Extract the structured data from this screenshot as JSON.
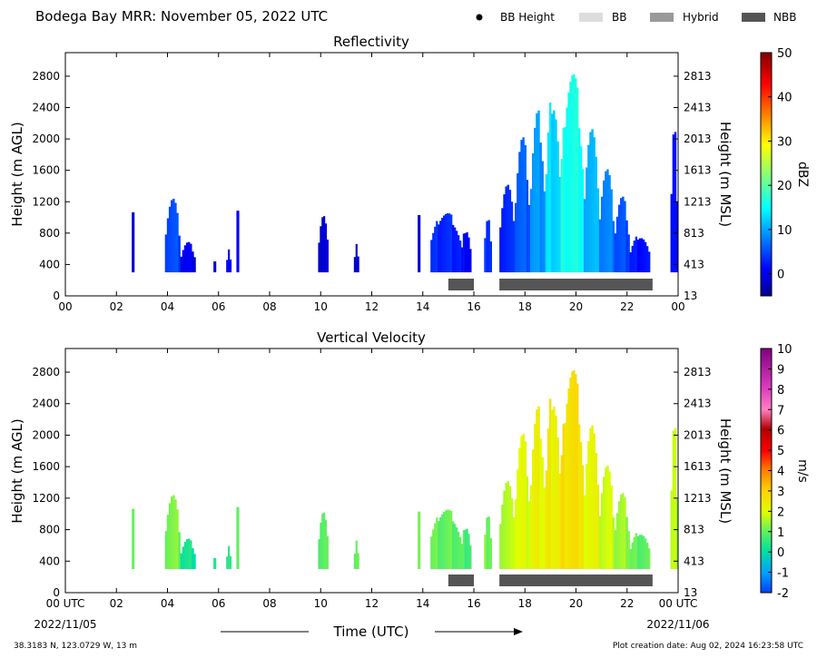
{
  "header": {
    "title": "Bodega Bay MRR:  November 05, 2022 UTC",
    "legend": [
      {
        "label": "BB Height",
        "kind": "dot",
        "color": "#000000"
      },
      {
        "label": "BB",
        "kind": "box",
        "color": "#dddddd"
      },
      {
        "label": "Hybrid",
        "kind": "box",
        "color": "#999999"
      },
      {
        "label": "NBB",
        "kind": "box",
        "color": "#555555"
      }
    ]
  },
  "footer": {
    "location": "38.3183 N, 123.0729 W, 13 m",
    "creation": "Plot creation date: Aug 02, 2024 16:23:58 UTC",
    "xlabel": "Time (UTC)",
    "start_date": "2022/11/05",
    "end_date": "2022/11/06"
  },
  "chart_data": [
    {
      "type": "heatmap",
      "title": "Reflectivity",
      "xlabel": "",
      "ylabel": "Height (m AGL)",
      "ylabel_right": "Height (m MSL)",
      "colorbar_label": "dBZ",
      "x_ticks": [
        "00",
        "02",
        "04",
        "06",
        "08",
        "10",
        "12",
        "14",
        "16",
        "18",
        "20",
        "22",
        "00"
      ],
      "y_ticks": [
        0,
        400,
        800,
        1200,
        1600,
        2000,
        2400,
        2800
      ],
      "y_ticks_right": [
        13,
        413,
        813,
        1213,
        1613,
        2013,
        2413,
        2813
      ],
      "colorbar_ticks": [
        0,
        10,
        20,
        30,
        40,
        50
      ],
      "xlim": [
        0,
        24
      ],
      "ylim": [
        0,
        3100
      ],
      "clim": [
        -5,
        50
      ],
      "echo_segments": [
        {
          "start": 2.6,
          "end": 2.7,
          "top": 1200,
          "value": 0
        },
        {
          "start": 3.9,
          "end": 4.5,
          "top": 1300,
          "value": 5
        },
        {
          "start": 4.5,
          "end": 5.1,
          "top": 700,
          "value": 0
        },
        {
          "start": 5.8,
          "end": 5.9,
          "top": 450,
          "value": -1
        },
        {
          "start": 6.3,
          "end": 6.5,
          "top": 600,
          "value": 0
        },
        {
          "start": 6.7,
          "end": 6.8,
          "top": 1100,
          "value": 0
        },
        {
          "start": 9.9,
          "end": 10.3,
          "top": 1100,
          "value": -1
        },
        {
          "start": 11.3,
          "end": 11.5,
          "top": 700,
          "value": -1
        },
        {
          "start": 13.8,
          "end": 13.9,
          "top": 1100,
          "value": -1
        },
        {
          "start": 14.3,
          "end": 15.5,
          "top": 1100,
          "value": 3
        },
        {
          "start": 15.5,
          "end": 15.9,
          "top": 900,
          "value": 1
        },
        {
          "start": 16.4,
          "end": 16.7,
          "top": 1100,
          "value": 4
        },
        {
          "start": 17.0,
          "end": 17.6,
          "top": 1500,
          "value": 3
        },
        {
          "start": 17.6,
          "end": 18.2,
          "top": 2100,
          "value": 6
        },
        {
          "start": 18.2,
          "end": 18.8,
          "top": 2400,
          "value": 9
        },
        {
          "start": 18.8,
          "end": 19.4,
          "top": 2700,
          "value": 13
        },
        {
          "start": 19.4,
          "end": 20.3,
          "top": 3000,
          "value": 16
        },
        {
          "start": 20.3,
          "end": 20.9,
          "top": 2300,
          "value": 11
        },
        {
          "start": 20.9,
          "end": 21.5,
          "top": 1700,
          "value": 8
        },
        {
          "start": 21.5,
          "end": 22.1,
          "top": 1300,
          "value": 5
        },
        {
          "start": 22.1,
          "end": 22.9,
          "top": 800,
          "value": 2
        },
        {
          "start": 23.7,
          "end": 24.0,
          "top": 2200,
          "value": 1
        }
      ],
      "bars": [
        {
          "label": "NBB",
          "start": 15.0,
          "end": 16.0
        },
        {
          "label": "NBB",
          "start": 17.0,
          "end": 23.0
        }
      ]
    },
    {
      "type": "heatmap",
      "title": "Vertical Velocity",
      "xlabel": "Time (UTC)",
      "ylabel": "Height (m AGL)",
      "ylabel_right": "Height (m MSL)",
      "colorbar_label": "m/s",
      "x_ticks": [
        "00 UTC",
        "02",
        "04",
        "06",
        "08",
        "10",
        "12",
        "14",
        "16",
        "18",
        "20",
        "22",
        "00 UTC"
      ],
      "y_ticks": [
        0,
        400,
        800,
        1200,
        1600,
        2000,
        2400,
        2800
      ],
      "y_ticks_right": [
        13,
        413,
        813,
        1213,
        1613,
        2013,
        2413,
        2813
      ],
      "colorbar_ticks": [
        -2,
        -1,
        0,
        1,
        2,
        3,
        4,
        5,
        6,
        7,
        8,
        9,
        10
      ],
      "xlim": [
        0,
        24
      ],
      "ylim": [
        0,
        3100
      ],
      "clim": [
        -2,
        10
      ],
      "echo_segments": [
        {
          "start": 2.6,
          "end": 2.7,
          "top": 1200,
          "value": 1.3
        },
        {
          "start": 3.9,
          "end": 4.5,
          "top": 1300,
          "value": 1.2
        },
        {
          "start": 4.5,
          "end": 5.1,
          "top": 700,
          "value": 0.2
        },
        {
          "start": 5.8,
          "end": 5.9,
          "top": 450,
          "value": 0.3
        },
        {
          "start": 6.3,
          "end": 6.5,
          "top": 600,
          "value": 0.3
        },
        {
          "start": 6.7,
          "end": 6.8,
          "top": 1100,
          "value": 0.8
        },
        {
          "start": 9.9,
          "end": 10.3,
          "top": 1100,
          "value": 1.0
        },
        {
          "start": 11.3,
          "end": 11.5,
          "top": 700,
          "value": 1.1
        },
        {
          "start": 13.8,
          "end": 13.9,
          "top": 1100,
          "value": 1.2
        },
        {
          "start": 14.3,
          "end": 15.5,
          "top": 1100,
          "value": 1.0
        },
        {
          "start": 15.5,
          "end": 15.9,
          "top": 900,
          "value": 0.8
        },
        {
          "start": 16.4,
          "end": 16.7,
          "top": 1100,
          "value": 1.2
        },
        {
          "start": 17.0,
          "end": 17.6,
          "top": 1500,
          "value": 1.6
        },
        {
          "start": 17.6,
          "end": 18.2,
          "top": 2100,
          "value": 2.0
        },
        {
          "start": 18.2,
          "end": 18.8,
          "top": 2400,
          "value": 2.2
        },
        {
          "start": 18.8,
          "end": 19.4,
          "top": 2700,
          "value": 2.4
        },
        {
          "start": 19.4,
          "end": 20.3,
          "top": 3000,
          "value": 2.7
        },
        {
          "start": 20.3,
          "end": 20.9,
          "top": 2300,
          "value": 2.2
        },
        {
          "start": 20.9,
          "end": 21.5,
          "top": 1700,
          "value": 1.8
        },
        {
          "start": 21.5,
          "end": 22.1,
          "top": 1300,
          "value": 1.4
        },
        {
          "start": 22.1,
          "end": 22.9,
          "top": 800,
          "value": 1.0
        },
        {
          "start": 23.7,
          "end": 24.0,
          "top": 2200,
          "value": 1.6
        }
      ],
      "bars": [
        {
          "label": "NBB",
          "start": 15.0,
          "end": 16.0
        },
        {
          "label": "NBB",
          "start": 17.0,
          "end": 23.0
        }
      ]
    }
  ]
}
